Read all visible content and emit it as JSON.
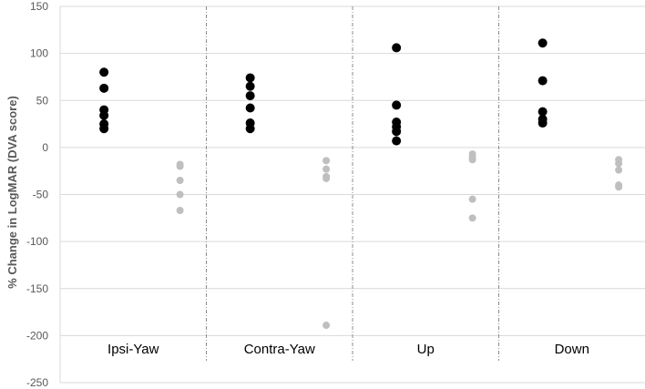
{
  "chart_data": {
    "type": "scatter",
    "title": "",
    "xlabel": "",
    "ylabel": "% Change in LogMAR (DVA score)",
    "ylim": [
      -250,
      150
    ],
    "yticks": [
      150,
      100,
      50,
      0,
      -50,
      -100,
      -150,
      -200,
      -250
    ],
    "grid": true,
    "legend": "none",
    "categories": [
      "Ipsi-Yaw",
      "Contra-Yaw",
      "Up",
      "Down"
    ],
    "series": [
      {
        "color": "#000000",
        "values": [
          [
            80,
            63,
            40,
            34,
            25,
            20
          ],
          [
            74,
            65,
            55,
            42,
            26,
            20
          ],
          [
            106,
            45,
            27,
            22,
            17,
            7
          ],
          [
            111,
            71,
            38,
            30,
            26
          ]
        ]
      },
      {
        "color": "#bfbfbf",
        "values": [
          [
            -18,
            -20,
            -35,
            -50,
            -67
          ],
          [
            -14,
            -23,
            -31,
            -33,
            -189
          ],
          [
            -7,
            -10,
            -13,
            -55,
            -75
          ],
          [
            -13,
            -17,
            -24,
            -40,
            -42
          ]
        ]
      }
    ]
  }
}
